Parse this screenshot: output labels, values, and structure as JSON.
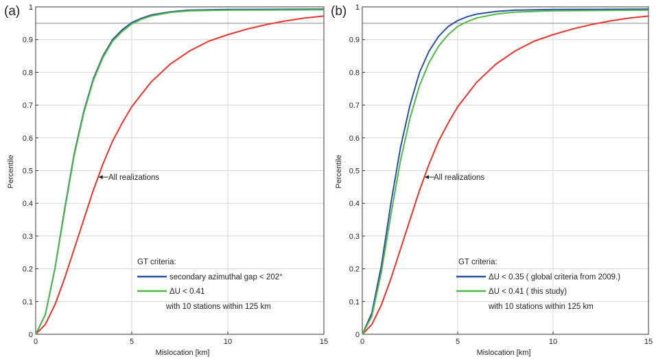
{
  "chart_data": [
    {
      "type": "line",
      "panel_label": "(a)",
      "xlabel": "Mislocation [km]",
      "ylabel": "Percentile",
      "xlim": [
        0,
        15
      ],
      "ylim": [
        0,
        1
      ],
      "xticks": [
        "0",
        "5",
        "10",
        "15"
      ],
      "yticks": [
        "0",
        "0.1",
        "0.2",
        "0.3",
        "0.4",
        "0.5",
        "0.6",
        "0.7",
        "0.8",
        "0.9",
        "1"
      ],
      "grid": true,
      "reference_line_y": 0.95,
      "annotation": {
        "text": "All realizations",
        "x": 3.2,
        "y": 0.48
      },
      "legend": {
        "title": "GT criteria:",
        "entries": [
          "secondary azimuthal gap  <  202°",
          "ΔU   < 0.41"
        ],
        "note": "with 10 stations within 125 km",
        "placement": "bottom-right"
      },
      "series": [
        {
          "color": "#e8322a",
          "x": [
            0,
            0.5,
            1,
            1.5,
            2,
            2.5,
            3,
            3.5,
            4,
            4.5,
            5,
            6,
            7,
            8,
            9,
            10,
            11,
            12,
            13,
            14,
            15
          ],
          "y": [
            0,
            0.03,
            0.09,
            0.17,
            0.26,
            0.35,
            0.44,
            0.52,
            0.59,
            0.645,
            0.695,
            0.77,
            0.825,
            0.865,
            0.895,
            0.915,
            0.932,
            0.946,
            0.957,
            0.966,
            0.972
          ]
        },
        {
          "color": "#2b4fa0",
          "x": [
            0,
            0.5,
            1,
            1.5,
            2,
            2.5,
            3,
            3.5,
            4,
            4.5,
            5,
            5.5,
            6,
            7,
            8,
            10,
            15
          ],
          "y": [
            0,
            0.06,
            0.2,
            0.38,
            0.55,
            0.68,
            0.78,
            0.85,
            0.9,
            0.93,
            0.952,
            0.965,
            0.975,
            0.985,
            0.99,
            0.992,
            0.993
          ]
        },
        {
          "color": "#4cb848",
          "x": [
            0,
            0.5,
            1,
            1.5,
            2,
            2.5,
            3,
            3.5,
            4,
            4.5,
            5,
            5.5,
            6,
            7,
            8,
            10,
            15
          ],
          "y": [
            0,
            0.06,
            0.2,
            0.375,
            0.545,
            0.675,
            0.775,
            0.845,
            0.895,
            0.925,
            0.948,
            0.962,
            0.972,
            0.983,
            0.988,
            0.99,
            0.991
          ]
        }
      ]
    },
    {
      "type": "line",
      "panel_label": "(b)",
      "xlabel": "Mislocation [km]",
      "ylabel": "Percentile",
      "xlim": [
        0,
        15
      ],
      "ylim": [
        0,
        1
      ],
      "xticks": [
        "0",
        "5",
        "10",
        "15"
      ],
      "yticks": [
        "0",
        "0.1",
        "0.2",
        "0.3",
        "0.4",
        "0.5",
        "0.6",
        "0.7",
        "0.8",
        "0.9",
        "1"
      ],
      "grid": true,
      "reference_line_y": 0.95,
      "annotation": {
        "text": "All realizations",
        "x": 3.2,
        "y": 0.48
      },
      "legend": {
        "title": "GT criteria:",
        "entries": [
          "ΔU  <  0.35 ( global criteria from 2009.)",
          "ΔU  < 0.41 ( this study)"
        ],
        "note": "with 10 stations within 125 km",
        "placement": "bottom-right"
      },
      "series": [
        {
          "color": "#e8322a",
          "x": [
            0,
            0.5,
            1,
            1.5,
            2,
            2.5,
            3,
            3.5,
            4,
            4.5,
            5,
            6,
            7,
            8,
            9,
            10,
            11,
            12,
            13,
            14,
            15
          ],
          "y": [
            0,
            0.03,
            0.09,
            0.17,
            0.26,
            0.35,
            0.44,
            0.52,
            0.59,
            0.645,
            0.695,
            0.77,
            0.825,
            0.865,
            0.895,
            0.915,
            0.932,
            0.946,
            0.957,
            0.966,
            0.972
          ]
        },
        {
          "color": "#2b4fa0",
          "x": [
            0,
            0.5,
            1,
            1.5,
            2,
            2.5,
            3,
            3.5,
            4,
            4.5,
            5,
            5.5,
            6,
            7,
            8,
            10,
            15
          ],
          "y": [
            0,
            0.065,
            0.21,
            0.4,
            0.57,
            0.7,
            0.8,
            0.865,
            0.91,
            0.94,
            0.958,
            0.97,
            0.978,
            0.986,
            0.99,
            0.992,
            0.993
          ]
        },
        {
          "color": "#4cb848",
          "x": [
            0,
            0.5,
            1,
            1.5,
            2,
            2.5,
            3,
            3.5,
            4,
            4.5,
            5,
            5.5,
            6,
            7,
            8,
            10,
            15
          ],
          "y": [
            0,
            0.055,
            0.19,
            0.365,
            0.53,
            0.66,
            0.76,
            0.83,
            0.88,
            0.915,
            0.94,
            0.955,
            0.966,
            0.978,
            0.984,
            0.988,
            0.99
          ]
        }
      ]
    }
  ]
}
